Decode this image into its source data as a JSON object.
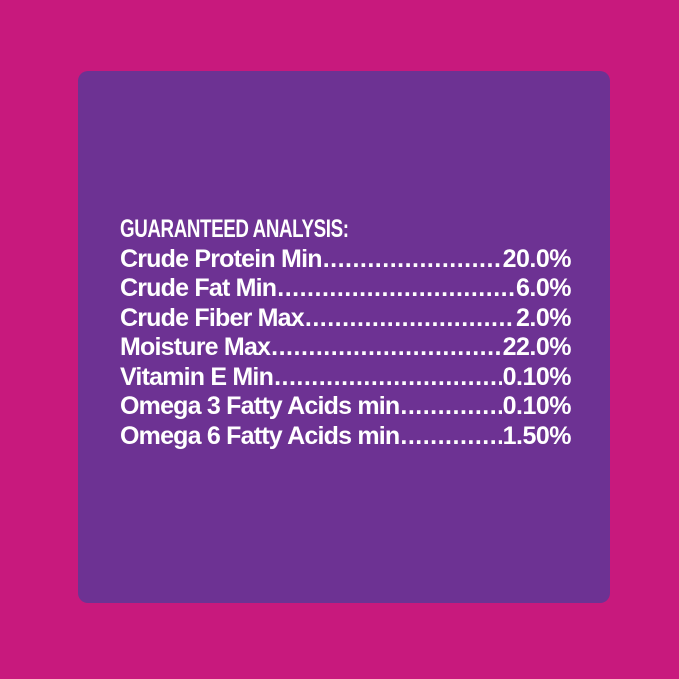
{
  "colors": {
    "background": "#C8197D",
    "panel": "#6D3293",
    "text": "#FFFFFF"
  },
  "panel": {
    "heading": "GUARANTEED ANALYSIS:",
    "leader_char": ".",
    "rows": [
      {
        "label": "Crude Protein Min",
        "value": "20.0%"
      },
      {
        "label": "Crude Fat Min",
        "value": "6.0%"
      },
      {
        "label": "Crude Fiber Max",
        "value": "2.0%"
      },
      {
        "label": "Moisture Max",
        "value": "22.0%"
      },
      {
        "label": "Vitamin E Min",
        "value": "0.10%"
      },
      {
        "label": "Omega 3 Fatty Acids min",
        "value": "0.10%"
      },
      {
        "label": "Omega 6 Fatty Acids min",
        "value": "1.50%"
      }
    ]
  }
}
